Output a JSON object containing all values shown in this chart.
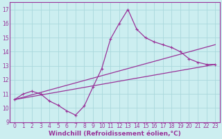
{
  "background_color": "#cceef0",
  "grid_color": "#aad8dc",
  "line_color": "#993399",
  "xlabel": "Windchill (Refroidissement éolien,°C)",
  "xlim": [
    -0.5,
    23.5
  ],
  "ylim": [
    9,
    17.5
  ],
  "xticks": [
    0,
    1,
    2,
    3,
    4,
    5,
    6,
    7,
    8,
    9,
    10,
    11,
    12,
    13,
    14,
    15,
    16,
    17,
    18,
    19,
    20,
    21,
    22,
    23
  ],
  "yticks": [
    9,
    10,
    11,
    12,
    13,
    14,
    15,
    16,
    17
  ],
  "curve1_x": [
    0,
    1,
    2,
    3,
    4,
    5,
    6,
    7,
    8,
    9,
    10,
    11,
    12,
    13,
    14,
    15,
    16,
    17,
    18,
    19,
    20,
    21,
    22,
    23
  ],
  "curve1_y": [
    10.6,
    11.0,
    11.2,
    11.0,
    10.5,
    10.2,
    9.8,
    9.5,
    10.15,
    11.5,
    12.8,
    14.9,
    16.0,
    17.0,
    15.6,
    15.0,
    14.7,
    14.5,
    14.3,
    14.0,
    13.5,
    13.25,
    13.1,
    13.1
  ],
  "line1_x": [
    0,
    23
  ],
  "line1_y": [
    10.6,
    14.5
  ],
  "line2_x": [
    0,
    23
  ],
  "line2_y": [
    10.6,
    13.1
  ],
  "tick_fontsize": 5.5,
  "xlabel_fontsize": 6.5,
  "tick_color": "#993399",
  "xlabel_color": "#993399",
  "spine_color": "#993399"
}
